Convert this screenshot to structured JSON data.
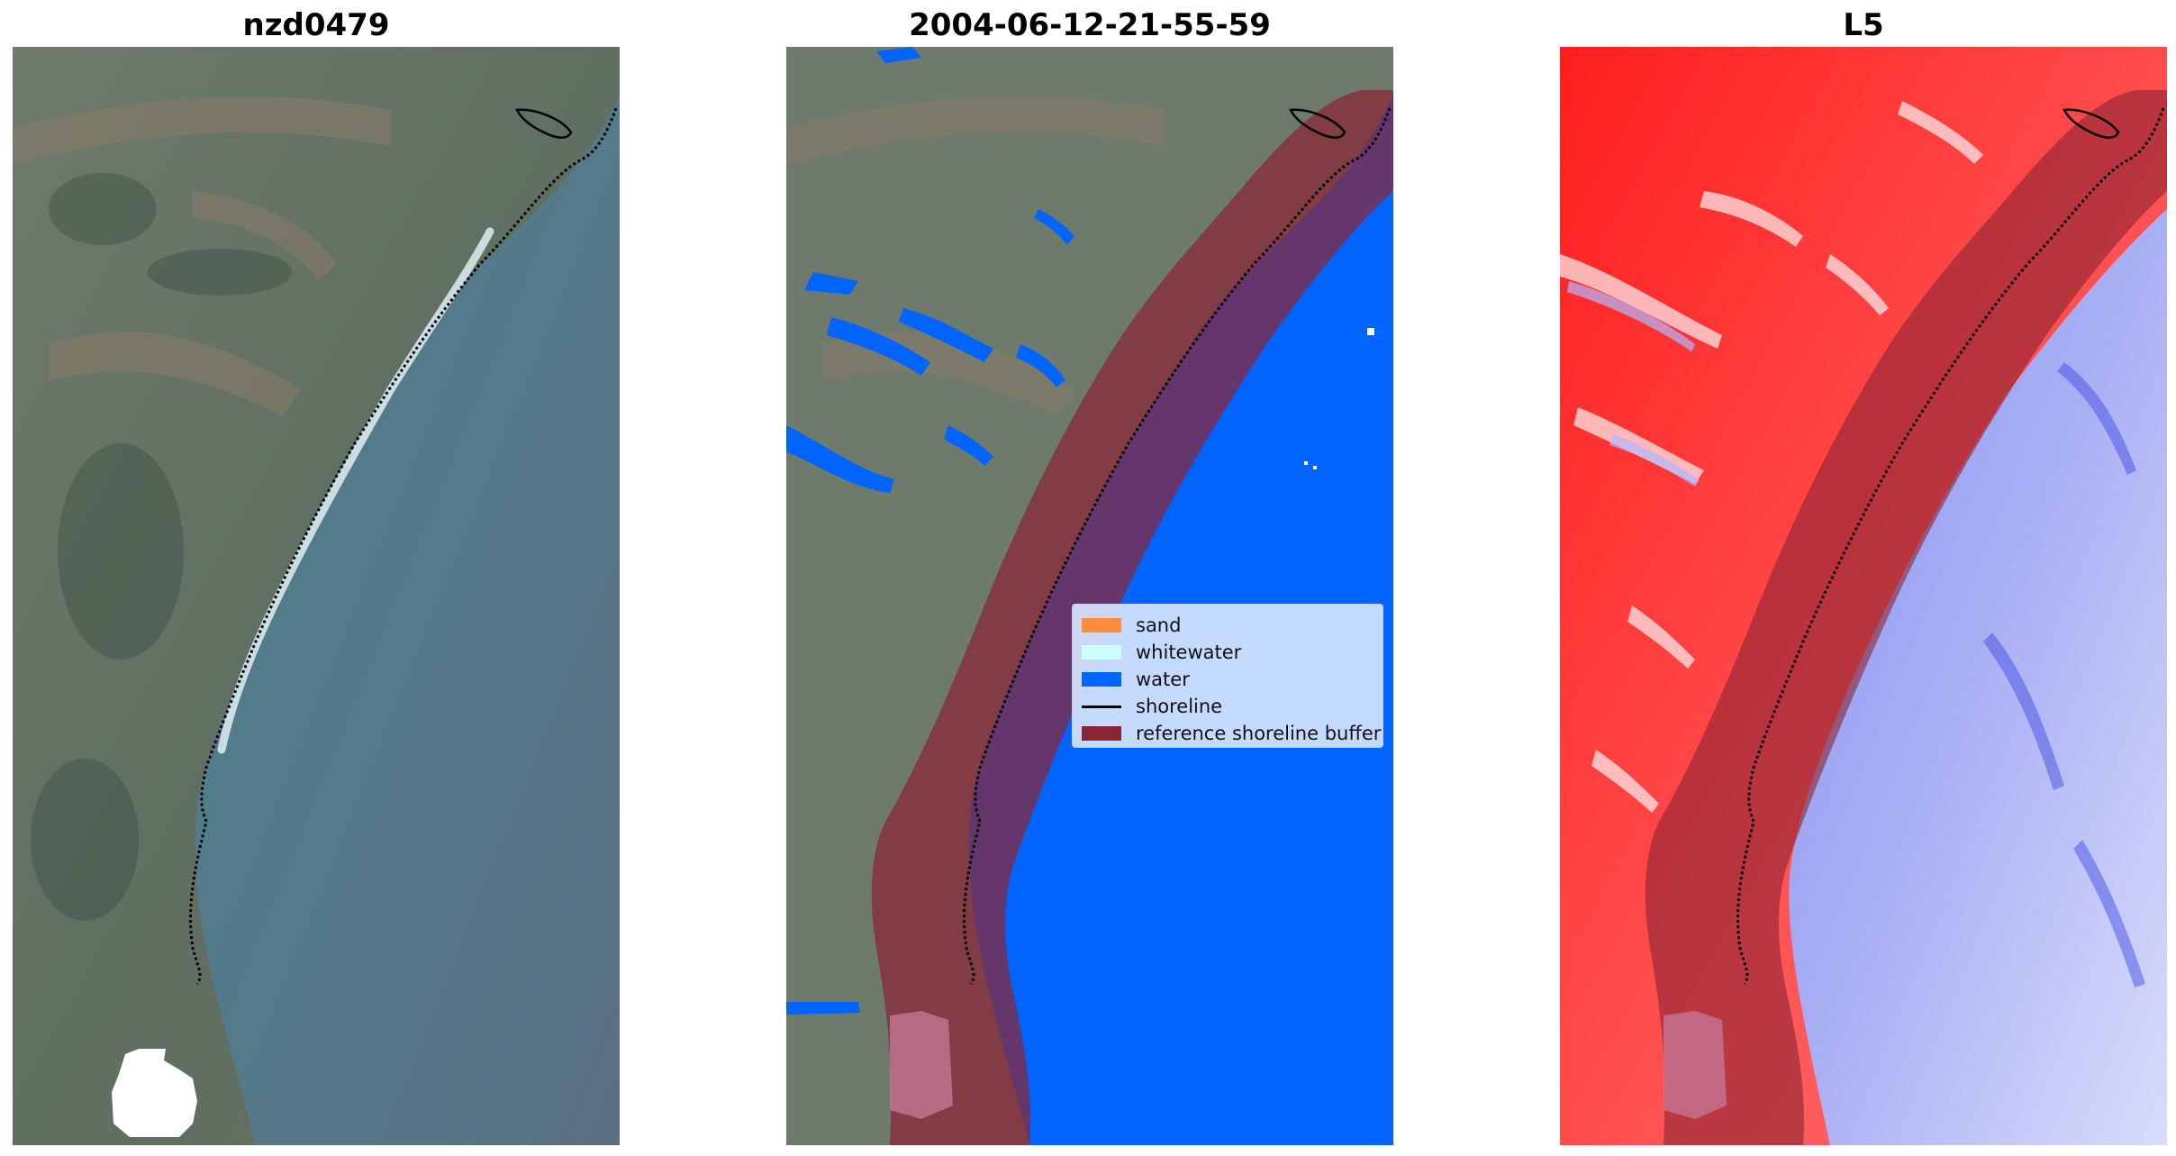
{
  "panels": [
    {
      "title": "nzd0479"
    },
    {
      "title": "2004-06-12-21-55-59"
    },
    {
      "title": "L5"
    }
  ],
  "legend": {
    "items": [
      {
        "label": "sand",
        "color": "#ff8c3a",
        "kind": "patch"
      },
      {
        "label": "whitewater",
        "color": "#ccffff",
        "kind": "patch"
      },
      {
        "label": "water",
        "color": "#0066ff",
        "kind": "patch"
      },
      {
        "label": "shoreline",
        "color": "#000000",
        "kind": "line"
      },
      {
        "label": "reference shoreline buffer",
        "color": "#8b2433",
        "kind": "patch"
      }
    ]
  },
  "colors": {
    "land": "#6f7d6e",
    "sea": "#4f6f80",
    "classified_water": "#0064ff",
    "buffer": "#8b2433",
    "index_positive": "#ff2a2a",
    "index_negative": "#2f3fe0"
  }
}
